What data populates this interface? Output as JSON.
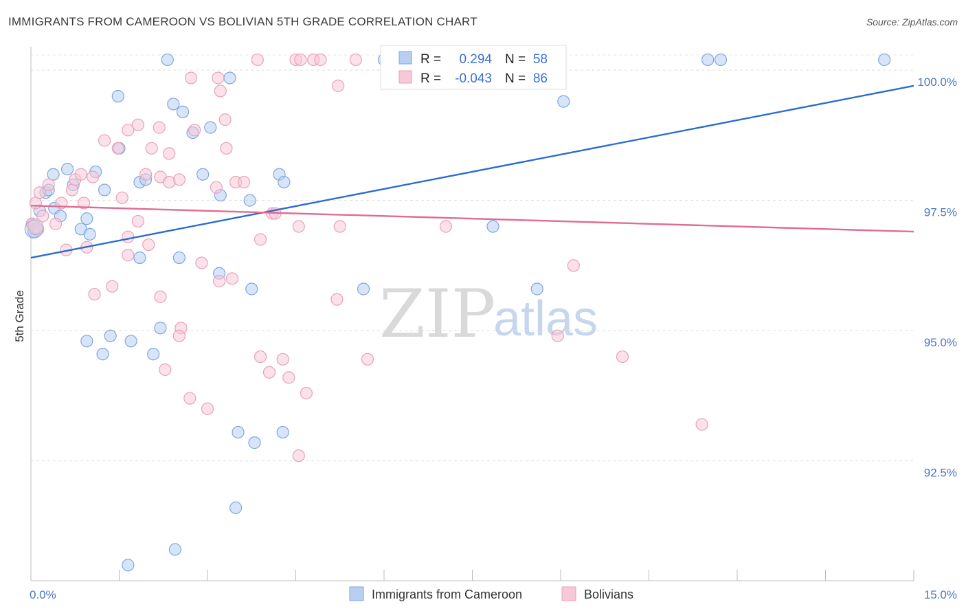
{
  "title": "IMMIGRANTS FROM CAMEROON VS BOLIVIAN 5TH GRADE CORRELATION CHART",
  "source": "Source: ZipAtlas.com",
  "watermark": {
    "zip": "ZIP",
    "atlas": "atlas"
  },
  "stats": [
    {
      "r_label": "R =",
      "r_value": "0.294",
      "n_label": "N =",
      "n_value": "58",
      "color": "#a9c4f0"
    },
    {
      "r_label": "R =",
      "r_value": "-0.043",
      "n_label": "N =",
      "n_value": "86",
      "color": "#f5b8cb"
    }
  ],
  "chart_data": {
    "type": "scatter",
    "title": "IMMIGRANTS FROM CAMEROON VS BOLIVIAN 5TH GRADE CORRELATION CHART",
    "xlabel": "",
    "ylabel": "5th Grade",
    "xlim": [
      0,
      15
    ],
    "ylim": [
      90.2,
      100.45
    ],
    "x_tick_labels": [
      {
        "value": 0,
        "label": "0.0%"
      },
      {
        "value": 15,
        "label": "15.0%"
      }
    ],
    "y_ticks": [
      {
        "value": 92.5,
        "label": "92.5%"
      },
      {
        "value": 95.0,
        "label": "95.0%"
      },
      {
        "value": 97.5,
        "label": "97.5%"
      },
      {
        "value": 100.0,
        "label": "100.0%"
      }
    ],
    "grid": "horizontal dashed",
    "legend_position": "bottom-center",
    "series": [
      {
        "name": "Immigrants from Cameroon",
        "color": "#7ea6e0",
        "fill": "#b8cff2",
        "trend": {
          "x": [
            0,
            15
          ],
          "y": [
            96.4,
            99.7
          ],
          "color": "#2b6ccf"
        },
        "points": [
          [
            0.02,
            97.05
          ],
          [
            0.05,
            96.9
          ],
          [
            0.08,
            96.95
          ],
          [
            0.15,
            97.3
          ],
          [
            0.25,
            97.65
          ],
          [
            0.3,
            97.7
          ],
          [
            0.38,
            98.0
          ],
          [
            0.4,
            97.35
          ],
          [
            0.5,
            97.2
          ],
          [
            0.62,
            98.1
          ],
          [
            0.72,
            97.8
          ],
          [
            0.85,
            96.95
          ],
          [
            0.95,
            97.15
          ],
          [
            1.0,
            96.85
          ],
          [
            1.1,
            98.05
          ],
          [
            1.25,
            97.7
          ],
          [
            1.48,
            99.5
          ],
          [
            1.5,
            98.5
          ],
          [
            1.85,
            97.85
          ],
          [
            1.95,
            97.9
          ],
          [
            1.85,
            96.4
          ],
          [
            2.32,
            100.2
          ],
          [
            2.42,
            99.35
          ],
          [
            2.58,
            99.2
          ],
          [
            2.75,
            98.8
          ],
          [
            2.92,
            98.0
          ],
          [
            3.05,
            98.9
          ],
          [
            3.22,
            97.6
          ],
          [
            3.38,
            99.85
          ],
          [
            3.72,
            97.5
          ],
          [
            4.22,
            98.0
          ],
          [
            4.3,
            97.85
          ],
          [
            6.0,
            100.2
          ],
          [
            7.8,
            100.2
          ],
          [
            7.85,
            97.0
          ],
          [
            9.05,
            99.4
          ],
          [
            11.5,
            100.2
          ],
          [
            11.72,
            100.2
          ],
          [
            14.5,
            100.2
          ],
          [
            2.52,
            96.4
          ],
          [
            3.2,
            96.1
          ],
          [
            3.75,
            95.8
          ],
          [
            5.65,
            95.8
          ],
          [
            8.6,
            95.8
          ],
          [
            1.35,
            94.9
          ],
          [
            2.2,
            95.05
          ],
          [
            0.95,
            94.8
          ],
          [
            1.7,
            94.8
          ],
          [
            1.22,
            94.55
          ],
          [
            2.08,
            94.55
          ],
          [
            3.52,
            93.05
          ],
          [
            3.8,
            92.85
          ],
          [
            4.28,
            93.05
          ],
          [
            3.48,
            91.6
          ],
          [
            2.45,
            90.8
          ],
          [
            1.65,
            90.5
          ]
        ]
      },
      {
        "name": "Bolivians",
        "color": "#eba0b8",
        "fill": "#f7c9d7",
        "trend": {
          "x": [
            0,
            15
          ],
          "y": [
            97.4,
            96.9
          ],
          "color": "#e06c94"
        },
        "points": [
          [
            0.02,
            97.05
          ],
          [
            0.08,
            97.45
          ],
          [
            0.12,
            96.95
          ],
          [
            0.15,
            97.65
          ],
          [
            0.2,
            97.2
          ],
          [
            0.3,
            97.8
          ],
          [
            0.42,
            97.05
          ],
          [
            0.52,
            97.45
          ],
          [
            0.6,
            96.55
          ],
          [
            0.7,
            97.7
          ],
          [
            0.75,
            97.9
          ],
          [
            0.85,
            98.0
          ],
          [
            1.05,
            97.95
          ],
          [
            1.25,
            98.65
          ],
          [
            1.48,
            98.5
          ],
          [
            1.55,
            97.55
          ],
          [
            1.65,
            98.85
          ],
          [
            1.82,
            98.95
          ],
          [
            1.95,
            98.0
          ],
          [
            2.05,
            98.5
          ],
          [
            2.18,
            98.9
          ],
          [
            2.2,
            97.95
          ],
          [
            2.35,
            98.4
          ],
          [
            2.52,
            97.9
          ],
          [
            2.72,
            99.85
          ],
          [
            2.78,
            98.85
          ],
          [
            3.18,
            99.85
          ],
          [
            3.22,
            99.6
          ],
          [
            3.3,
            99.05
          ],
          [
            3.32,
            98.5
          ],
          [
            3.48,
            97.85
          ],
          [
            3.62,
            97.85
          ],
          [
            3.85,
            100.2
          ],
          [
            4.1,
            97.25
          ],
          [
            4.5,
            100.2
          ],
          [
            4.58,
            100.2
          ],
          [
            4.8,
            100.2
          ],
          [
            4.92,
            100.2
          ],
          [
            5.22,
            99.7
          ],
          [
            5.52,
            100.2
          ],
          [
            6.4,
            100.2
          ],
          [
            6.92,
            100.2
          ],
          [
            8.6,
            100.0
          ],
          [
            0.9,
            97.45
          ],
          [
            1.65,
            96.8
          ],
          [
            1.82,
            97.1
          ],
          [
            2.0,
            96.65
          ],
          [
            2.35,
            97.85
          ],
          [
            2.9,
            96.3
          ],
          [
            3.15,
            97.75
          ],
          [
            3.42,
            96.0
          ],
          [
            3.9,
            96.75
          ],
          [
            4.15,
            97.25
          ],
          [
            4.55,
            97.0
          ],
          [
            5.25,
            97.0
          ],
          [
            7.05,
            97.0
          ],
          [
            0.95,
            96.6
          ],
          [
            1.08,
            95.7
          ],
          [
            1.38,
            95.85
          ],
          [
            1.65,
            96.45
          ],
          [
            2.2,
            95.65
          ],
          [
            2.55,
            95.05
          ],
          [
            2.52,
            94.9
          ],
          [
            3.2,
            95.95
          ],
          [
            5.2,
            95.6
          ],
          [
            8.95,
            94.9
          ],
          [
            9.22,
            96.25
          ],
          [
            10.05,
            94.5
          ],
          [
            2.28,
            94.25
          ],
          [
            2.7,
            93.7
          ],
          [
            3.0,
            93.5
          ],
          [
            3.9,
            94.5
          ],
          [
            4.05,
            94.2
          ],
          [
            4.28,
            94.45
          ],
          [
            4.38,
            94.1
          ],
          [
            4.68,
            93.8
          ],
          [
            4.55,
            92.6
          ],
          [
            5.72,
            94.45
          ],
          [
            11.4,
            93.2
          ]
        ]
      }
    ]
  }
}
